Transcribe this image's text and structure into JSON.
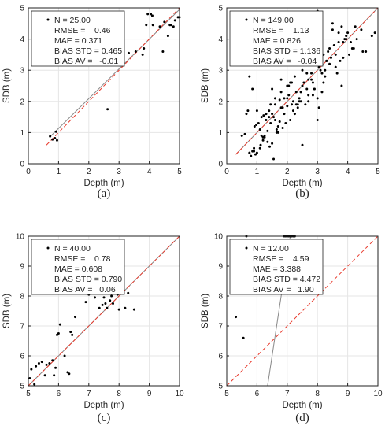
{
  "style": {
    "point_color": "#000000",
    "fit_line_color": "#888888",
    "identity_line_color": "#e8382a",
    "grid_color": "#e6e6e6",
    "frame_color": "#222222"
  },
  "chart_data": [
    {
      "type": "scatter",
      "panel_label": "(a)",
      "xlabel": "Depth (m)",
      "ylabel": "SDB (m)",
      "xlim": [
        0,
        5
      ],
      "ylim": [
        0,
        5
      ],
      "xticks": [
        0,
        1,
        2,
        3,
        4,
        5
      ],
      "yticks": [
        0,
        1,
        2,
        3,
        4,
        5
      ],
      "grid": true,
      "legend_position": "top-left",
      "stats": [
        {
          "label": "N",
          "value": "25.00",
          "text": "N = 25.00"
        },
        {
          "label": "RMSE",
          "value": "0.46",
          "text": "RMSE =    0.46"
        },
        {
          "label": "MAE",
          "value": "0.371",
          "text": "MAE = 0.371"
        },
        {
          "label": "BIAS STD",
          "value": "0.465",
          "text": "BIAS STD = 0.465"
        },
        {
          "label": "BIAS AV",
          "value": "-0.01",
          "text": "BIAS AV =   -0.01"
        }
      ],
      "fit_line": {
        "x": [
          0.7,
          5.0
        ],
        "y": [
          0.85,
          4.95
        ]
      },
      "identity_line": {
        "x": [
          0.6,
          5.0
        ],
        "y": [
          0.6,
          5.0
        ]
      },
      "points": {
        "x": [
          0.72,
          0.8,
          0.88,
          0.92,
          0.95,
          2.62,
          3.32,
          3.55,
          3.78,
          3.82,
          3.9,
          3.95,
          4.05,
          4.1,
          4.12,
          4.35,
          4.45,
          4.5,
          4.62,
          4.68,
          4.72,
          4.8,
          4.95,
          5.0,
          4.85
        ],
        "y": [
          0.88,
          0.78,
          0.82,
          1.03,
          0.75,
          1.75,
          3.55,
          3.6,
          3.5,
          3.7,
          4.45,
          4.8,
          4.8,
          4.75,
          4.45,
          4.4,
          3.6,
          4.55,
          4.1,
          4.45,
          4.45,
          4.4,
          4.7,
          4.7,
          4.6
        ]
      }
    },
    {
      "type": "scatter",
      "panel_label": "(b)",
      "xlabel": "Depth (m)",
      "ylabel": "SDB (m)",
      "xlim": [
        0,
        5
      ],
      "ylim": [
        0,
        5
      ],
      "xticks": [
        0,
        1,
        2,
        3,
        4,
        5
      ],
      "yticks": [
        0,
        1,
        2,
        3,
        4,
        5
      ],
      "grid": true,
      "legend_position": "top-left",
      "stats": [
        {
          "label": "N",
          "value": "149.00",
          "text": "N = 149.00"
        },
        {
          "label": "RMSE",
          "value": "1.13",
          "text": "RMSE =    1.13"
        },
        {
          "label": "MAE",
          "value": "0.826",
          "text": "MAE = 0.826"
        },
        {
          "label": "BIAS STD",
          "value": "1.136",
          "text": "BIAS STD = 1.136"
        },
        {
          "label": "BIAS AV",
          "value": "-0.04",
          "text": "BIAS AV =   -0.04"
        }
      ],
      "fit_line": {
        "x": [
          0.3,
          5.0
        ],
        "y": [
          0.3,
          5.0
        ]
      },
      "identity_line": {
        "x": [
          0.3,
          5.0
        ],
        "y": [
          0.3,
          5.0
        ]
      },
      "points": {
        "x": [
          0.5,
          0.6,
          0.65,
          0.7,
          0.75,
          0.8,
          0.85,
          0.9,
          0.92,
          0.95,
          0.98,
          1.0,
          1.05,
          1.1,
          1.12,
          1.15,
          1.2,
          1.22,
          1.25,
          1.3,
          1.3,
          1.35,
          1.4,
          1.42,
          1.45,
          1.5,
          1.5,
          1.55,
          1.6,
          1.6,
          1.65,
          1.7,
          1.75,
          1.8,
          1.8,
          1.85,
          1.9,
          1.95,
          2.0,
          2.0,
          2.05,
          2.1,
          2.15,
          2.2,
          2.25,
          2.3,
          2.35,
          2.4,
          2.45,
          2.5,
          2.55,
          2.6,
          2.65,
          2.7,
          2.75,
          2.8,
          2.85,
          2.9,
          2.95,
          3.0,
          3.05,
          3.1,
          3.15,
          3.2,
          3.25,
          3.3,
          3.35,
          3.4,
          3.5,
          3.55,
          3.6,
          3.7,
          3.75,
          3.8,
          3.85,
          3.9,
          3.95,
          4.0,
          4.1,
          4.2,
          4.3,
          4.45,
          4.5,
          4.6,
          4.8,
          4.9,
          0.75,
          0.85,
          1.0,
          1.1,
          1.2,
          1.3,
          1.4,
          1.5,
          1.6,
          1.7,
          1.8,
          1.9,
          2.0,
          2.1,
          2.2,
          2.3,
          2.4,
          2.5,
          2.6,
          2.7,
          2.8,
          2.9,
          3.0,
          3.1,
          3.2,
          3.3,
          3.4,
          3.5,
          3.6,
          3.7,
          3.8,
          0.9,
          1.15,
          1.35,
          1.45,
          1.55,
          1.75,
          1.85,
          2.05,
          2.25,
          2.45,
          2.65,
          2.85,
          3.05,
          3.25,
          3.45,
          3.65,
          3.85,
          4.05,
          4.25,
          2.5,
          2.7,
          3.0,
          1.25,
          1.65,
          2.15,
          2.35,
          3.15,
          3.95,
          4.15
        ],
        "y": [
          0.9,
          0.95,
          1.6,
          1.7,
          0.35,
          0.25,
          0.4,
          0.5,
          1.2,
          0.3,
          1.25,
          1.7,
          1.3,
          1.1,
          0.6,
          1.5,
          0.75,
          1.55,
          0.9,
          1.6,
          1.4,
          1.05,
          1.5,
          0.55,
          1.3,
          0.65,
          1.6,
          0.15,
          1.9,
          2.1,
          1.0,
          1.2,
          2.05,
          1.8,
          2.3,
          1.15,
          2.1,
          1.3,
          2.5,
          1.85,
          2.2,
          1.4,
          1.9,
          2.0,
          2.8,
          1.9,
          1.8,
          2.0,
          2.3,
          3.0,
          2.6,
          1.9,
          2.9,
          2.7,
          3.2,
          2.9,
          2.6,
          2.4,
          3.4,
          4.9,
          1.8,
          3.2,
          2.9,
          3.5,
          3.0,
          3.3,
          3.6,
          3.2,
          4.3,
          3.8,
          3.5,
          3.9,
          3.3,
          2.5,
          3.4,
          4.0,
          4.1,
          4.2,
          3.9,
          3.7,
          4.0,
          4.3,
          3.6,
          3.6,
          4.1,
          4.2,
          2.8,
          2.4,
          0.35,
          0.5,
          0.85,
          1.6,
          1.7,
          2.4,
          1.4,
          1.0,
          2.7,
          1.6,
          2.1,
          2.6,
          1.7,
          2.3,
          2.1,
          2.5,
          3.4,
          2.2,
          2.7,
          2.4,
          2.1,
          3.0,
          2.6,
          3.3,
          3.7,
          4.5,
          3.1,
          4.2,
          4.4,
          0.4,
          0.9,
          0.7,
          1.9,
          1.5,
          1.35,
          1.8,
          2.5,
          1.6,
          2.0,
          2.4,
          2.2,
          3.1,
          2.8,
          3.4,
          2.9,
          3.9,
          3.5,
          4.4,
          0.6,
          2.0,
          1.4,
          0.85,
          1.1,
          2.6,
          1.9,
          2.3,
          4.0,
          3.7
        ],
        "note": ""
      }
    },
    {
      "type": "scatter",
      "panel_label": "(c)",
      "xlabel": "Depth (m)",
      "ylabel": "SDB (m)",
      "xlim": [
        5,
        10
      ],
      "ylim": [
        5,
        10
      ],
      "xticks": [
        5,
        6,
        7,
        8,
        9,
        10
      ],
      "yticks": [
        5,
        6,
        7,
        8,
        9,
        10
      ],
      "grid": true,
      "legend_position": "top-left",
      "stats": [
        {
          "label": "N",
          "value": "40.00",
          "text": "N = 40.00"
        },
        {
          "label": "RMSE",
          "value": "0.78",
          "text": "RMSE =    0.78"
        },
        {
          "label": "MAE",
          "value": "0.608",
          "text": "MAE = 0.608"
        },
        {
          "label": "BIAS STD",
          "value": "0.790",
          "text": "BIAS STD = 0.790"
        },
        {
          "label": "BIAS AV",
          "value": "0.06",
          "text": "BIAS AV =   0.06"
        }
      ],
      "fit_line": {
        "x": [
          5.0,
          10.0
        ],
        "y": [
          5.0,
          10.0
        ]
      },
      "identity_line": {
        "x": [
          5.0,
          10.0
        ],
        "y": [
          5.0,
          10.0
        ]
      },
      "points": {
        "x": [
          5.05,
          5.1,
          5.2,
          5.25,
          5.35,
          5.45,
          5.55,
          5.6,
          5.7,
          5.8,
          5.85,
          5.9,
          5.95,
          6.0,
          6.05,
          6.2,
          6.3,
          6.4,
          6.45,
          6.55,
          6.9,
          7.0,
          7.2,
          7.35,
          7.45,
          7.5,
          7.55,
          7.6,
          7.65,
          7.7,
          7.75,
          7.8,
          7.85,
          7.9,
          8.0,
          8.2,
          8.3,
          8.5,
          6.35,
          7.95
        ],
        "y": [
          5.25,
          5.55,
          5.05,
          5.65,
          5.75,
          5.8,
          5.35,
          5.7,
          5.75,
          5.85,
          5.35,
          5.6,
          6.7,
          6.75,
          7.05,
          6.0,
          5.45,
          6.8,
          6.7,
          7.3,
          7.8,
          8.05,
          7.95,
          7.6,
          7.7,
          7.95,
          7.75,
          7.6,
          8.3,
          7.85,
          8.0,
          7.75,
          8.1,
          8.25,
          7.55,
          7.6,
          8.1,
          7.55,
          5.4,
          8.05
        ]
      }
    },
    {
      "type": "scatter",
      "panel_label": "(d)",
      "xlabel": "Depth (m)",
      "ylabel": "SDB (m)",
      "xlim": [
        5,
        10
      ],
      "ylim": [
        5,
        10
      ],
      "xticks": [
        5,
        6,
        7,
        8,
        9,
        10
      ],
      "yticks": [
        5,
        6,
        7,
        8,
        9,
        10
      ],
      "grid": true,
      "legend_position": "top-left",
      "stats": [
        {
          "label": "N",
          "value": "12.00",
          "text": "N = 12.00"
        },
        {
          "label": "RMSE",
          "value": "4.59",
          "text": "RMSE =    4.59"
        },
        {
          "label": "MAE",
          "value": "3.388",
          "text": "MAE = 3.388"
        },
        {
          "label": "BIAS STD",
          "value": "4.472",
          "text": "BIAS STD = 4.472"
        },
        {
          "label": "BIAS AV",
          "value": "1.90",
          "text": "BIAS AV =   1.90"
        }
      ],
      "fit_line": {
        "x": [
          6.35,
          7.1
        ],
        "y": [
          5.0,
          10.0
        ]
      },
      "identity_line": {
        "x": [
          5.0,
          10.0
        ],
        "y": [
          5.0,
          10.0
        ]
      },
      "points": {
        "x": [
          5.3,
          5.55,
          5.65,
          6.9,
          7.0,
          7.05,
          7.1,
          7.15,
          7.2,
          7.25,
          6.95,
          7.1
        ],
        "y": [
          7.3,
          6.6,
          10.0,
          10.0,
          10.0,
          10.0,
          10.0,
          10.0,
          10.0,
          10.0,
          10.0,
          10.0
        ]
      }
    }
  ]
}
